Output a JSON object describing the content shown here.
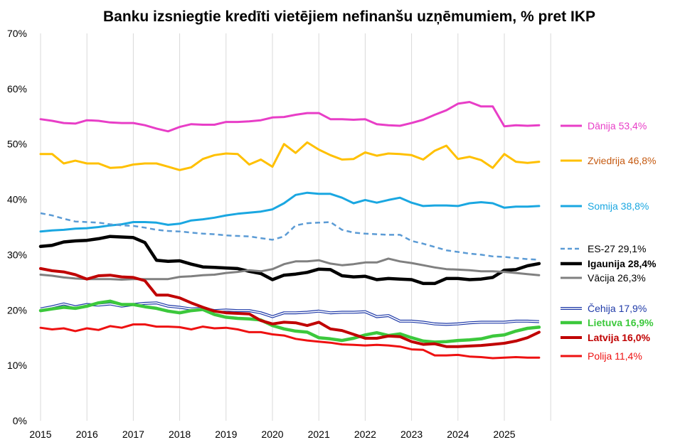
{
  "chart_data": {
    "type": "line",
    "title": "Banku izsniegtie kredīti vietējiem nefinanšu uzņēmumiem, % pret IKP",
    "xlabel": "",
    "ylabel": "",
    "ylim": [
      0,
      70
    ],
    "yticks": [
      "0%",
      "10%",
      "20%",
      "30%",
      "40%",
      "50%",
      "60%",
      "70%"
    ],
    "xlim": [
      2015,
      2026
    ],
    "xticks": [
      "2015",
      "2016",
      "2017",
      "2018",
      "2019",
      "2020",
      "2021",
      "2022",
      "2023",
      "2024",
      "2025"
    ],
    "grid": "vertical",
    "legend": "right",
    "series": [
      {
        "name": "Dānija",
        "label": "Dānija 53,4%",
        "color": "#e83ec7",
        "label_color": "#e83ec7",
        "bold": false,
        "dashed": false,
        "width": 3,
        "x": [
          2015,
          2015.25,
          2015.5,
          2015.75,
          2016,
          2016.25,
          2016.5,
          2016.75,
          2017,
          2017.25,
          2017.5,
          2017.75,
          2018,
          2018.25,
          2018.5,
          2018.75,
          2019,
          2019.25,
          2019.5,
          2019.75,
          2020,
          2020.25,
          2020.5,
          2020.75,
          2021,
          2021.25,
          2021.5,
          2021.75,
          2022,
          2022.25,
          2022.5,
          2022.75,
          2023,
          2023.25,
          2023.5,
          2023.75,
          2024,
          2024.25,
          2024.5,
          2024.75,
          2025,
          2025.25,
          2025.5,
          2025.75
        ],
        "y": [
          54.5,
          54.2,
          53.8,
          53.7,
          54.3,
          54.2,
          53.9,
          53.8,
          53.8,
          53.4,
          52.8,
          52.3,
          53.1,
          53.6,
          53.5,
          53.5,
          54,
          54,
          54.1,
          54.3,
          54.8,
          54.9,
          55.3,
          55.6,
          55.6,
          54.5,
          54.5,
          54.4,
          54.5,
          53.6,
          53.4,
          53.3,
          53.8,
          54.4,
          55.3,
          56.1,
          57.3,
          57.6,
          56.8,
          56.8,
          53.2,
          53.4,
          53.3,
          53.4
        ]
      },
      {
        "name": "Zviedrija",
        "label": "Zviedrija 46,8%",
        "color": "#ffc000",
        "label_color": "#c55a11",
        "bold": false,
        "dashed": false,
        "width": 3,
        "x": [
          2015,
          2015.25,
          2015.5,
          2015.75,
          2016,
          2016.25,
          2016.5,
          2016.75,
          2017,
          2017.25,
          2017.5,
          2017.75,
          2018,
          2018.25,
          2018.5,
          2018.75,
          2019,
          2019.25,
          2019.5,
          2019.75,
          2020,
          2020.25,
          2020.5,
          2020.75,
          2021,
          2021.25,
          2021.5,
          2021.75,
          2022,
          2022.25,
          2022.5,
          2022.75,
          2023,
          2023.25,
          2023.5,
          2023.75,
          2024,
          2024.25,
          2024.5,
          2024.75,
          2025,
          2025.25,
          2025.5,
          2025.75
        ],
        "y": [
          48.2,
          48.2,
          46.5,
          47,
          46.5,
          46.5,
          45.7,
          45.8,
          46.3,
          46.5,
          46.5,
          45.9,
          45.3,
          45.8,
          47.3,
          48,
          48.3,
          48.2,
          46.3,
          47.2,
          45.9,
          50,
          48.4,
          50.3,
          49,
          48,
          47.2,
          47.3,
          48.5,
          47.9,
          48.3,
          48.2,
          48,
          47.2,
          48.8,
          49.7,
          47.3,
          47.7,
          47.1,
          45.7,
          48.2,
          46.8,
          46.6,
          46.8
        ]
      },
      {
        "name": "Somija",
        "label": "Somija 38,8%",
        "color": "#1aa7e1",
        "label_color": "#1aa7e1",
        "bold": false,
        "dashed": false,
        "width": 3,
        "x": [
          2015,
          2015.25,
          2015.5,
          2015.75,
          2016,
          2016.25,
          2016.5,
          2016.75,
          2017,
          2017.25,
          2017.5,
          2017.75,
          2018,
          2018.25,
          2018.5,
          2018.75,
          2019,
          2019.25,
          2019.5,
          2019.75,
          2020,
          2020.25,
          2020.5,
          2020.75,
          2021,
          2021.25,
          2021.5,
          2021.75,
          2022,
          2022.25,
          2022.5,
          2022.75,
          2023,
          2023.25,
          2023.5,
          2023.75,
          2024,
          2024.25,
          2024.5,
          2024.75,
          2025,
          2025.25,
          2025.5,
          2025.75
        ],
        "y": [
          34.2,
          34.4,
          34.5,
          34.7,
          34.8,
          35,
          35.3,
          35.5,
          35.9,
          35.9,
          35.8,
          35.4,
          35.6,
          36.2,
          36.4,
          36.7,
          37.1,
          37.4,
          37.6,
          37.8,
          38.2,
          39.3,
          40.8,
          41.2,
          41,
          41,
          40.3,
          39.3,
          39.9,
          39.4,
          39.9,
          40.3,
          39.4,
          38.8,
          38.9,
          38.9,
          38.8,
          39.3,
          39.5,
          39.3,
          38.5,
          38.7,
          38.7,
          38.8
        ]
      },
      {
        "name": "ES-27",
        "label": "ES-27 29,1%",
        "color": "#5b9bd5",
        "label_color": "#000000",
        "bold": false,
        "dashed": true,
        "width": 2.5,
        "x": [
          2015,
          2015.25,
          2015.5,
          2015.75,
          2016,
          2016.25,
          2016.5,
          2016.75,
          2017,
          2017.25,
          2017.5,
          2017.75,
          2018,
          2018.25,
          2018.5,
          2018.75,
          2019,
          2019.25,
          2019.5,
          2019.75,
          2020,
          2020.25,
          2020.5,
          2020.75,
          2021,
          2021.25,
          2021.5,
          2021.75,
          2022,
          2022.25,
          2022.5,
          2022.75,
          2023,
          2023.25,
          2023.5,
          2023.75,
          2024,
          2024.25,
          2024.5,
          2024.75,
          2025,
          2025.25,
          2025.5,
          2025.75
        ],
        "y": [
          37.5,
          37.1,
          36.5,
          36,
          35.9,
          35.8,
          35.5,
          35.3,
          35.2,
          34.9,
          34.5,
          34.3,
          34.2,
          34,
          33.8,
          33.7,
          33.5,
          33.4,
          33.3,
          33,
          32.7,
          33.3,
          35.3,
          35.7,
          35.8,
          35.9,
          34.5,
          34,
          33.8,
          33.7,
          33.6,
          33.6,
          32.5,
          32,
          31.4,
          30.8,
          30.5,
          30.2,
          30,
          29.7,
          29.6,
          29.4,
          29.2,
          29.1
        ]
      },
      {
        "name": "Igaunija",
        "label": "Igaunija 28,4%",
        "color": "#000000",
        "label_color": "#000000",
        "bold": true,
        "dashed": false,
        "width": 4.5,
        "x": [
          2015,
          2015.25,
          2015.5,
          2015.75,
          2016,
          2016.25,
          2016.5,
          2016.75,
          2017,
          2017.25,
          2017.5,
          2017.75,
          2018,
          2018.25,
          2018.5,
          2018.75,
          2019,
          2019.25,
          2019.5,
          2019.75,
          2020,
          2020.25,
          2020.5,
          2020.75,
          2021,
          2021.25,
          2021.5,
          2021.75,
          2022,
          2022.25,
          2022.5,
          2022.75,
          2023,
          2023.25,
          2023.5,
          2023.75,
          2024,
          2024.25,
          2024.5,
          2024.75,
          2025,
          2025.25,
          2025.5,
          2025.75
        ],
        "y": [
          31.5,
          31.7,
          32.3,
          32.5,
          32.6,
          32.9,
          33.3,
          33.2,
          33.1,
          32.2,
          29,
          28.8,
          28.9,
          28.3,
          27.8,
          27.7,
          27.6,
          27.5,
          27,
          26.6,
          25.5,
          26.3,
          26.5,
          26.8,
          27.4,
          27.3,
          26.2,
          26,
          26.1,
          25.5,
          25.7,
          25.6,
          25.5,
          24.8,
          24.8,
          25.7,
          25.7,
          25.5,
          25.6,
          25.9,
          27.2,
          27.3,
          28,
          28.4
        ]
      },
      {
        "name": "Vācija",
        "label": "Vācija 26,3%",
        "color": "#808080",
        "label_color": "#000000",
        "bold": false,
        "dashed": false,
        "width": 3,
        "x": [
          2015,
          2015.25,
          2015.5,
          2015.75,
          2016,
          2016.25,
          2016.5,
          2016.75,
          2017,
          2017.25,
          2017.5,
          2017.75,
          2018,
          2018.25,
          2018.5,
          2018.75,
          2019,
          2019.25,
          2019.5,
          2019.75,
          2020,
          2020.25,
          2020.5,
          2020.75,
          2021,
          2021.25,
          2021.5,
          2021.75,
          2022,
          2022.25,
          2022.5,
          2022.75,
          2023,
          2023.25,
          2023.5,
          2023.75,
          2024,
          2024.25,
          2024.5,
          2024.75,
          2025,
          2025.25,
          2025.5,
          2025.75
        ],
        "y": [
          26.4,
          26.2,
          25.9,
          25.7,
          25.6,
          25.6,
          25.6,
          25.5,
          25.6,
          25.6,
          25.6,
          25.6,
          26,
          26.1,
          26.3,
          26.4,
          26.7,
          26.9,
          27.2,
          27,
          27.4,
          28.3,
          28.8,
          28.8,
          29,
          28.4,
          28.1,
          28.3,
          28.6,
          28.6,
          29.3,
          28.8,
          28.5,
          28.1,
          27.7,
          27.4,
          27.3,
          27.2,
          27,
          27,
          26.9,
          26.7,
          26.5,
          26.3
        ]
      },
      {
        "name": "Čehija",
        "label": "Čehija 17,9%",
        "color": "#1f3aa8",
        "label_color": "#1f3aa8",
        "bold": false,
        "dashed": false,
        "width": 2.5,
        "double": true,
        "x": [
          2015,
          2015.25,
          2015.5,
          2015.75,
          2016,
          2016.25,
          2016.5,
          2016.75,
          2017,
          2017.25,
          2017.5,
          2017.75,
          2018,
          2018.25,
          2018.5,
          2018.75,
          2019,
          2019.25,
          2019.5,
          2019.75,
          2020,
          2020.25,
          2020.5,
          2020.75,
          2021,
          2021.25,
          2021.5,
          2021.75,
          2022,
          2022.25,
          2022.5,
          2022.75,
          2023,
          2023.25,
          2023.5,
          2023.75,
          2024,
          2024.25,
          2024.5,
          2024.75,
          2025,
          2025.25,
          2025.5,
          2025.75
        ],
        "y": [
          20.2,
          20.6,
          21.1,
          20.6,
          21,
          20.9,
          21.1,
          20.7,
          21,
          21.2,
          21.3,
          20.7,
          20.5,
          20.2,
          20.3,
          19.9,
          20,
          19.9,
          19.9,
          19.5,
          18.8,
          19.5,
          19.5,
          19.6,
          19.8,
          19.5,
          19.6,
          19.6,
          19.7,
          18.8,
          19,
          18,
          18,
          17.8,
          17.5,
          17.4,
          17.5,
          17.7,
          17.8,
          17.8,
          17.8,
          18,
          18,
          17.9
        ]
      },
      {
        "name": "Lietuva",
        "label": "Lietuva 16,9%",
        "color": "#3cc83c",
        "label_color": "#3cc83c",
        "bold": true,
        "dashed": false,
        "width": 4.5,
        "x": [
          2015,
          2015.25,
          2015.5,
          2015.75,
          2016,
          2016.25,
          2016.5,
          2016.75,
          2017,
          2017.25,
          2017.5,
          2017.75,
          2018,
          2018.25,
          2018.5,
          2018.75,
          2019,
          2019.25,
          2019.5,
          2019.75,
          2020,
          2020.25,
          2020.5,
          2020.75,
          2021,
          2021.25,
          2021.5,
          2021.75,
          2022,
          2022.25,
          2022.5,
          2022.75,
          2023,
          2023.25,
          2023.5,
          2023.75,
          2024,
          2024.25,
          2024.5,
          2024.75,
          2025,
          2025.25,
          2025.5,
          2025.75
        ],
        "y": [
          19.9,
          20.2,
          20.5,
          20.3,
          20.7,
          21.3,
          21.6,
          21,
          21,
          20.6,
          20.3,
          19.8,
          19.5,
          19.9,
          20.1,
          19.2,
          18.7,
          18.5,
          18.4,
          18.2,
          17.2,
          16.6,
          16.2,
          16,
          15,
          14.8,
          14.5,
          14.9,
          15.5,
          15.9,
          15.4,
          15.7,
          15,
          14.4,
          14.2,
          14.3,
          14.5,
          14.6,
          14.8,
          15.3,
          15.5,
          16.2,
          16.7,
          16.9
        ]
      },
      {
        "name": "Latvija",
        "label": "Latvija 16,0%",
        "color": "#c00000",
        "label_color": "#c00000",
        "bold": true,
        "dashed": false,
        "width": 4,
        "x": [
          2015,
          2015.25,
          2015.5,
          2015.75,
          2016,
          2016.25,
          2016.5,
          2016.75,
          2017,
          2017.25,
          2017.5,
          2017.75,
          2018,
          2018.25,
          2018.5,
          2018.75,
          2019,
          2019.25,
          2019.5,
          2019.75,
          2020,
          2020.25,
          2020.5,
          2020.75,
          2021,
          2021.25,
          2021.5,
          2021.75,
          2022,
          2022.25,
          2022.5,
          2022.75,
          2023,
          2023.25,
          2023.5,
          2023.75,
          2024,
          2024.25,
          2024.5,
          2024.75,
          2025,
          2025.25,
          2025.5,
          2025.75
        ],
        "y": [
          27.5,
          27.1,
          26.9,
          26.4,
          25.6,
          26.2,
          26.3,
          26,
          25.9,
          25.3,
          22.7,
          22.7,
          22.2,
          21.3,
          20.5,
          19.8,
          19.5,
          19.4,
          19.3,
          18.1,
          17.5,
          17.8,
          17.7,
          17.2,
          17.8,
          16.6,
          16.3,
          15.6,
          14.9,
          14.9,
          15.3,
          15.2,
          14.3,
          13.8,
          13.9,
          13.4,
          13.4,
          13.5,
          13.6,
          13.8,
          14,
          14.4,
          15,
          16
        ]
      },
      {
        "name": "Polija",
        "label": "Polija 11,4%",
        "color": "#ee1111",
        "label_color": "#ee1111",
        "bold": false,
        "dashed": false,
        "width": 3,
        "x": [
          2015,
          2015.25,
          2015.5,
          2015.75,
          2016,
          2016.25,
          2016.5,
          2016.75,
          2017,
          2017.25,
          2017.5,
          2017.75,
          2018,
          2018.25,
          2018.5,
          2018.75,
          2019,
          2019.25,
          2019.5,
          2019.75,
          2020,
          2020.25,
          2020.5,
          2020.75,
          2021,
          2021.25,
          2021.5,
          2021.75,
          2022,
          2022.25,
          2022.5,
          2022.75,
          2023,
          2023.25,
          2023.5,
          2023.75,
          2024,
          2024.25,
          2024.5,
          2024.75,
          2025,
          2025.25,
          2025.5,
          2025.75
        ],
        "y": [
          16.8,
          16.5,
          16.7,
          16.2,
          16.7,
          16.4,
          17.1,
          16.8,
          17.4,
          17.4,
          17,
          17,
          16.9,
          16.5,
          17,
          16.7,
          16.8,
          16.5,
          16,
          16,
          15.6,
          15.4,
          14.8,
          14.5,
          14.3,
          14.1,
          13.8,
          13.7,
          13.6,
          13.7,
          13.6,
          13.4,
          12.9,
          12.8,
          11.8,
          11.8,
          11.9,
          11.6,
          11.5,
          11.3,
          11.4,
          11.5,
          11.4,
          11.4
        ]
      }
    ]
  }
}
